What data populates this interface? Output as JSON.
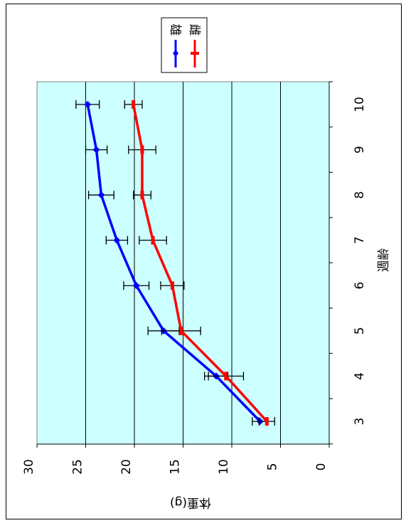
{
  "chart_data": {
    "type": "line",
    "orientation": "rotated-90",
    "xlabel": "週齢",
    "ylabel": "体重(g)",
    "x": [
      3,
      4,
      5,
      6,
      7,
      8,
      9,
      10
    ],
    "ylim": [
      0,
      30
    ],
    "yticks": [
      0,
      5,
      10,
      15,
      20,
      25,
      30
    ],
    "grid": true,
    "plot_background": "#ccffff",
    "legend_position": "top-right",
    "series": [
      {
        "name": "雄",
        "color": "#0000ff",
        "marker": "diamond",
        "values": [
          7.1,
          11.6,
          17.0,
          19.8,
          21.8,
          23.4,
          23.9,
          24.8
        ],
        "errors": [
          0.8,
          1.2,
          1.6,
          1.3,
          1.1,
          1.3,
          1.1,
          1.2
        ]
      },
      {
        "name": "雌",
        "color": "#ff0000",
        "marker": "bar",
        "values": [
          6.4,
          10.6,
          15.2,
          16.1,
          18.1,
          19.2,
          19.2,
          20.1
        ],
        "errors": [
          0.8,
          1.8,
          2.0,
          1.2,
          1.4,
          0.9,
          1.4,
          0.9
        ]
      }
    ]
  }
}
